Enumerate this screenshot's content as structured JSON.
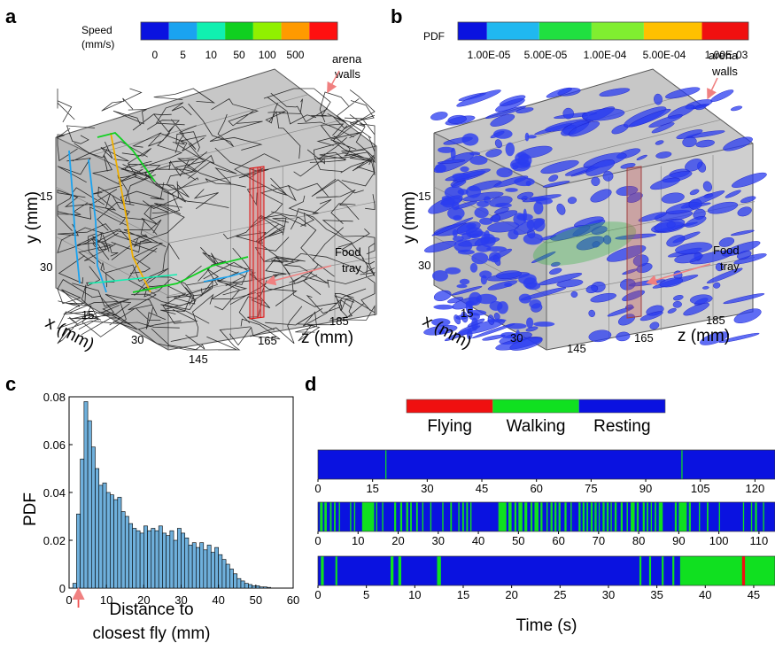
{
  "panels": {
    "a": "a",
    "b": "b",
    "c": "c",
    "d": "d"
  },
  "panel_a": {
    "legend_title_1": "Speed",
    "legend_title_2": "(mm/s)",
    "legend_colors": [
      "#0a12e0",
      "#1aa3f0",
      "#10f0b0",
      "#10d020",
      "#90f000",
      "#ff9a00",
      "#ff1010"
    ],
    "legend_ticks": [
      "0",
      "5",
      "10",
      "50",
      "100",
      "500"
    ],
    "annot_walls_1": "arena",
    "annot_walls_2": "walls",
    "annot_food_1": "Food",
    "annot_food_2": "tray",
    "y_label": "y (mm)",
    "x_label": "x (mm)",
    "z_label": "z (mm)",
    "y_ticks": [
      "15",
      "30"
    ],
    "x_ticks": [
      "15",
      "30"
    ],
    "z_ticks": [
      "145",
      "165",
      "185"
    ]
  },
  "panel_b": {
    "legend_title": "PDF",
    "legend_colors": [
      "#0a12e0",
      "#20b8f0",
      "#20e040",
      "#80ee30",
      "#ffc000",
      "#f01010"
    ],
    "legend_ticks": [
      "1.00E-05",
      "5.00E-05",
      "1.00E-04",
      "5.00E-04",
      "1.00E-03"
    ],
    "annot_walls_1": "arena",
    "annot_walls_2": "walls",
    "annot_food_1": "Food",
    "annot_food_2": "tray",
    "y_label": "y (mm)",
    "x_label": "x (mm)",
    "z_label": "z (mm)",
    "y_ticks": [
      "15",
      "30"
    ],
    "x_ticks": [
      "15",
      "30"
    ],
    "z_ticks": [
      "145",
      "165",
      "185"
    ]
  },
  "panel_d": {
    "legend": [
      {
        "name": "Flying",
        "color": "#f01010"
      },
      {
        "name": "Walking",
        "color": "#10e020"
      },
      {
        "name": "Resting",
        "color": "#0a12e0"
      }
    ],
    "xlabel": "Time (s)",
    "tracks": [
      {
        "xmax": 125.5,
        "ticks": [
          0,
          15,
          30,
          45,
          60,
          75,
          90,
          105,
          120
        ],
        "walking": [
          [
            18.5,
            18.8
          ],
          [
            99.8,
            100.1
          ]
        ],
        "flying": []
      },
      {
        "xmax": 114,
        "ticks": [
          0,
          10,
          20,
          30,
          40,
          50,
          60,
          70,
          80,
          90,
          100,
          110
        ],
        "walking": [
          [
            0.5,
            1.2
          ],
          [
            1.6,
            2.2
          ],
          [
            3,
            3.4
          ],
          [
            4,
            4.4
          ],
          [
            5.2,
            5.5
          ],
          [
            8,
            8.3
          ],
          [
            9,
            9.3
          ],
          [
            11,
            14
          ],
          [
            14.5,
            14.8
          ],
          [
            16,
            16.3
          ],
          [
            19,
            19.5
          ],
          [
            20.5,
            21
          ],
          [
            22,
            22.5
          ],
          [
            23,
            23.4
          ],
          [
            24.5,
            24.9
          ],
          [
            26,
            26.3
          ],
          [
            28,
            28.3
          ],
          [
            31,
            31.3
          ],
          [
            33,
            33.4
          ],
          [
            35,
            35.3
          ],
          [
            36,
            36.4
          ],
          [
            37,
            37.4
          ],
          [
            38,
            38.3
          ],
          [
            45,
            47
          ],
          [
            47.5,
            48.3
          ],
          [
            49,
            49.5
          ],
          [
            50,
            51
          ],
          [
            51.5,
            52.2
          ],
          [
            53,
            53.5
          ],
          [
            54,
            55
          ],
          [
            55.5,
            56
          ],
          [
            57,
            57.3
          ],
          [
            58,
            58.5
          ],
          [
            59,
            59.5
          ],
          [
            60,
            60.5
          ],
          [
            61.5,
            62
          ],
          [
            63,
            63.3
          ],
          [
            65,
            65.5
          ],
          [
            66,
            66.5
          ],
          [
            67,
            67.4
          ],
          [
            68,
            68.5
          ],
          [
            69,
            69.5
          ],
          [
            70,
            70.3
          ],
          [
            71,
            71.5
          ],
          [
            72,
            72.5
          ],
          [
            73,
            73.3
          ],
          [
            74,
            74.5
          ],
          [
            75.5,
            76
          ],
          [
            77,
            77.3
          ],
          [
            78,
            79
          ],
          [
            79.5,
            80
          ],
          [
            81,
            81.5
          ],
          [
            82,
            82.4
          ],
          [
            83,
            83.3
          ],
          [
            84,
            84.4
          ],
          [
            85,
            86
          ],
          [
            89,
            89.5
          ],
          [
            90,
            92
          ],
          [
            92.5,
            93
          ],
          [
            95,
            95.3
          ],
          [
            97,
            97.4
          ],
          [
            100,
            100.3
          ],
          [
            106,
            106.3
          ],
          [
            108,
            108.3
          ],
          [
            109,
            109.5
          ],
          [
            111,
            111.3
          ]
        ],
        "flying": []
      },
      {
        "xmax": 47.2,
        "ticks": [
          0,
          5,
          10,
          15,
          20,
          25,
          30,
          35,
          40,
          45
        ],
        "walking": [
          [
            0.3,
            0.6
          ],
          [
            1.8,
            2
          ],
          [
            7.5,
            7.8
          ],
          [
            8.3,
            8.6
          ],
          [
            12.3,
            12.7
          ],
          [
            33.2,
            33.4
          ],
          [
            34.2,
            34.4
          ],
          [
            35.5,
            35.7
          ],
          [
            36.6,
            36.8
          ],
          [
            37.4,
            47.2
          ]
        ],
        "flying": [
          [
            43.8,
            44.1
          ]
        ]
      }
    ]
  },
  "chart_data": [
    {
      "type": "bar",
      "panel": "c",
      "xlabel": "Distance to closest fly (mm)",
      "xlabel_line1": "Distance to",
      "xlabel_line2": "closest fly (mm)",
      "ylabel": "PDF",
      "xlim": [
        0,
        60
      ],
      "ylim": [
        0,
        0.08
      ],
      "xticks": [
        0,
        10,
        20,
        30,
        40,
        50,
        60
      ],
      "yticks": [
        "0",
        "0.02",
        "0.04",
        "0.06",
        "0.08"
      ],
      "bin_width": 1,
      "bin_start": 1,
      "values": [
        0.002,
        0.031,
        0.054,
        0.078,
        0.07,
        0.059,
        0.05,
        0.043,
        0.044,
        0.04,
        0.039,
        0.037,
        0.038,
        0.032,
        0.03,
        0.027,
        0.025,
        0.024,
        0.023,
        0.026,
        0.024,
        0.025,
        0.024,
        0.026,
        0.023,
        0.022,
        0.024,
        0.02,
        0.025,
        0.023,
        0.021,
        0.018,
        0.019,
        0.017,
        0.019,
        0.016,
        0.018,
        0.015,
        0.017,
        0.014,
        0.012,
        0.01,
        0.008,
        0.006,
        0.004,
        0.003,
        0.002,
        0.0015,
        0.001,
        0.001,
        0.0005,
        0.0005,
        0.0003
      ],
      "color": "#6fb0dc",
      "marker_x": 1
    },
    {
      "type": "table",
      "panel": "d",
      "note": "ethogram tracks, see panel_d"
    }
  ]
}
